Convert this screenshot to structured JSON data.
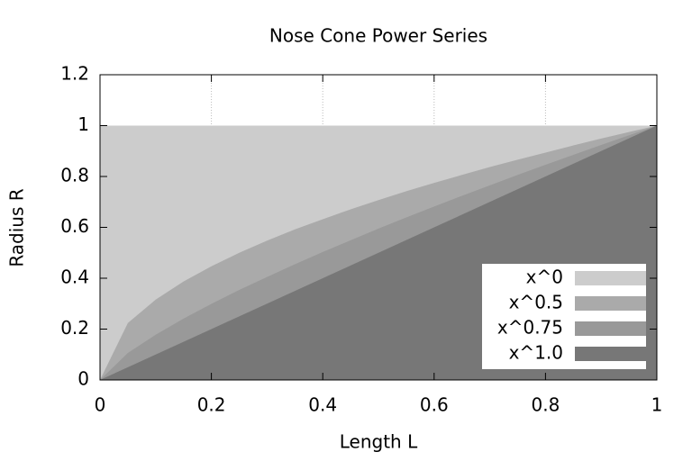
{
  "chart_data": {
    "type": "area",
    "title": "Nose Cone Power Series",
    "x_label": "Length L",
    "y_label": "Radius R",
    "x": [
      0,
      0.05,
      0.1,
      0.15,
      0.2,
      0.25,
      0.3,
      0.35,
      0.4,
      0.45,
      0.5,
      0.55,
      0.6,
      0.65,
      0.7,
      0.75,
      0.8,
      0.85,
      0.9,
      0.95,
      1
    ],
    "series": [
      {
        "name": "x^0",
        "color": "#cccccc",
        "values": [
          1,
          1,
          1,
          1,
          1,
          1,
          1,
          1,
          1,
          1,
          1,
          1,
          1,
          1,
          1,
          1,
          1,
          1,
          1,
          1,
          1
        ]
      },
      {
        "name": "x^0.5",
        "color": "#aaaaaa",
        "values": [
          0,
          0.224,
          0.316,
          0.387,
          0.447,
          0.5,
          0.548,
          0.592,
          0.632,
          0.671,
          0.707,
          0.742,
          0.775,
          0.806,
          0.837,
          0.866,
          0.894,
          0.922,
          0.949,
          0.975,
          1
        ]
      },
      {
        "name": "x^0.75",
        "color": "#999999",
        "values": [
          0,
          0.106,
          0.178,
          0.241,
          0.299,
          0.354,
          0.405,
          0.455,
          0.503,
          0.549,
          0.595,
          0.639,
          0.682,
          0.724,
          0.765,
          0.806,
          0.846,
          0.885,
          0.924,
          0.962,
          1
        ]
      },
      {
        "name": "x^1.0",
        "color": "#777777",
        "values": [
          0,
          0.05,
          0.1,
          0.15,
          0.2,
          0.25,
          0.3,
          0.35,
          0.4,
          0.45,
          0.5,
          0.55,
          0.6,
          0.65,
          0.7,
          0.75,
          0.8,
          0.85,
          0.9,
          0.95,
          1
        ]
      }
    ],
    "xlim": [
      0,
      1
    ],
    "ylim": [
      0,
      1.2
    ],
    "xticks": [
      0,
      0.2,
      0.4,
      0.6,
      0.8,
      1
    ],
    "yticks": [
      0,
      0.2,
      0.4,
      0.6,
      0.8,
      1,
      1.2
    ],
    "grid": true,
    "legend": "lower right"
  }
}
